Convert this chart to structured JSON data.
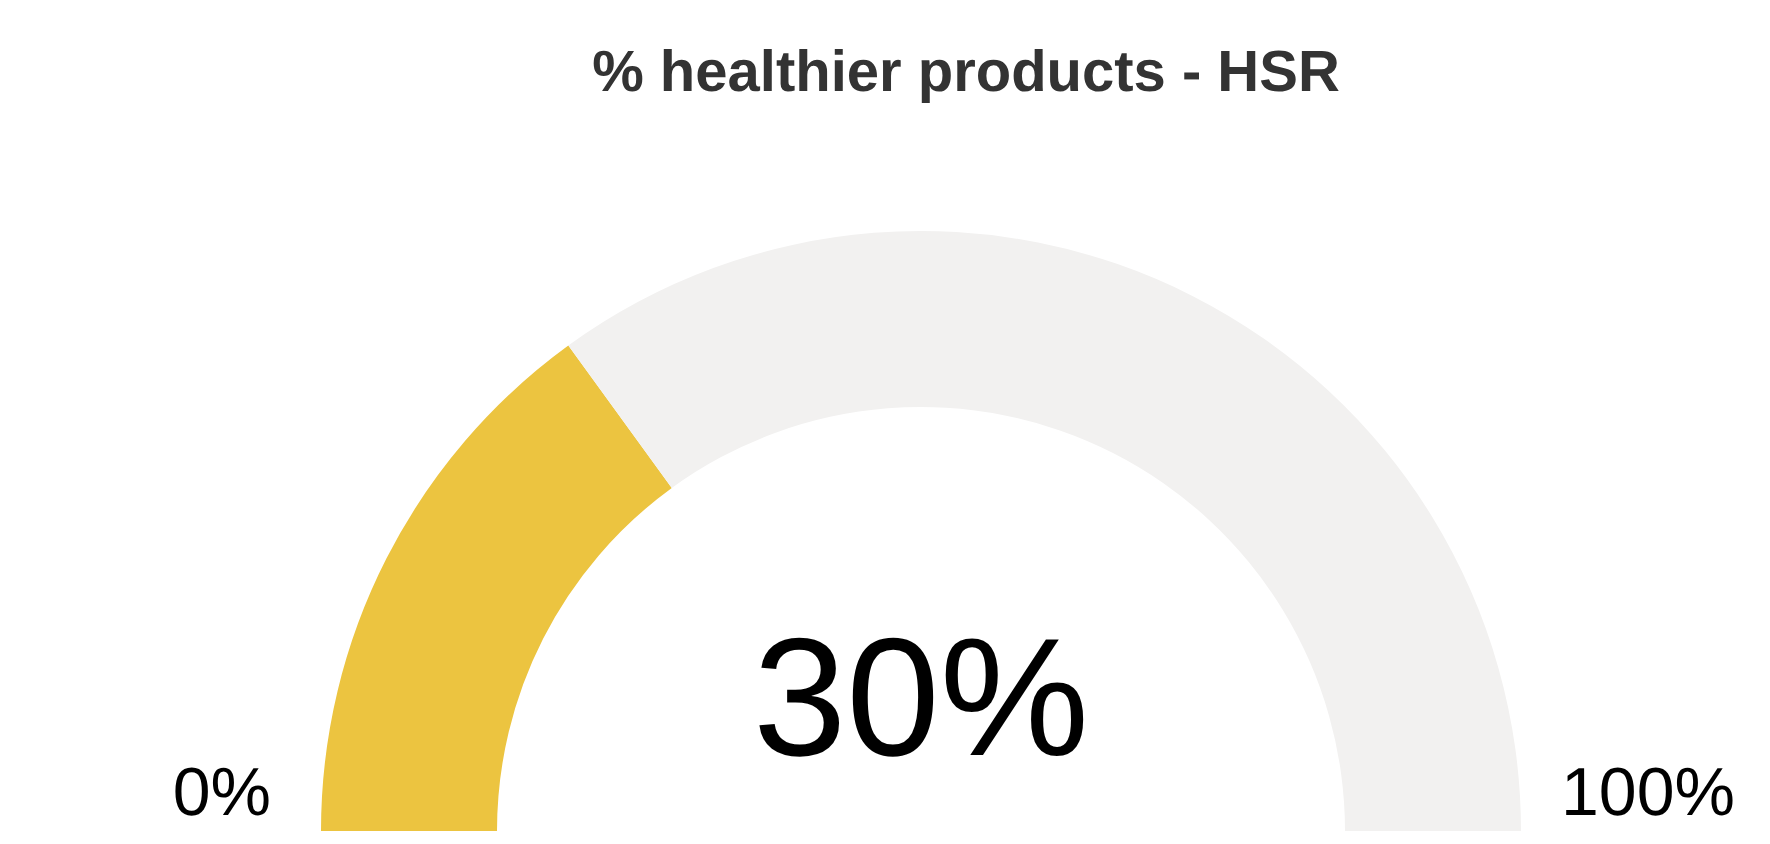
{
  "chart_data": {
    "type": "donut",
    "title": "% healthier products - HSR",
    "categories": [
      null,
      null
    ],
    "values": [
      30,
      70
    ],
    "colors": [
      "#ecc440",
      "#f2f1f0"
    ],
    "annotations": [
      "30%",
      "0%",
      "100%"
    ]
  }
}
